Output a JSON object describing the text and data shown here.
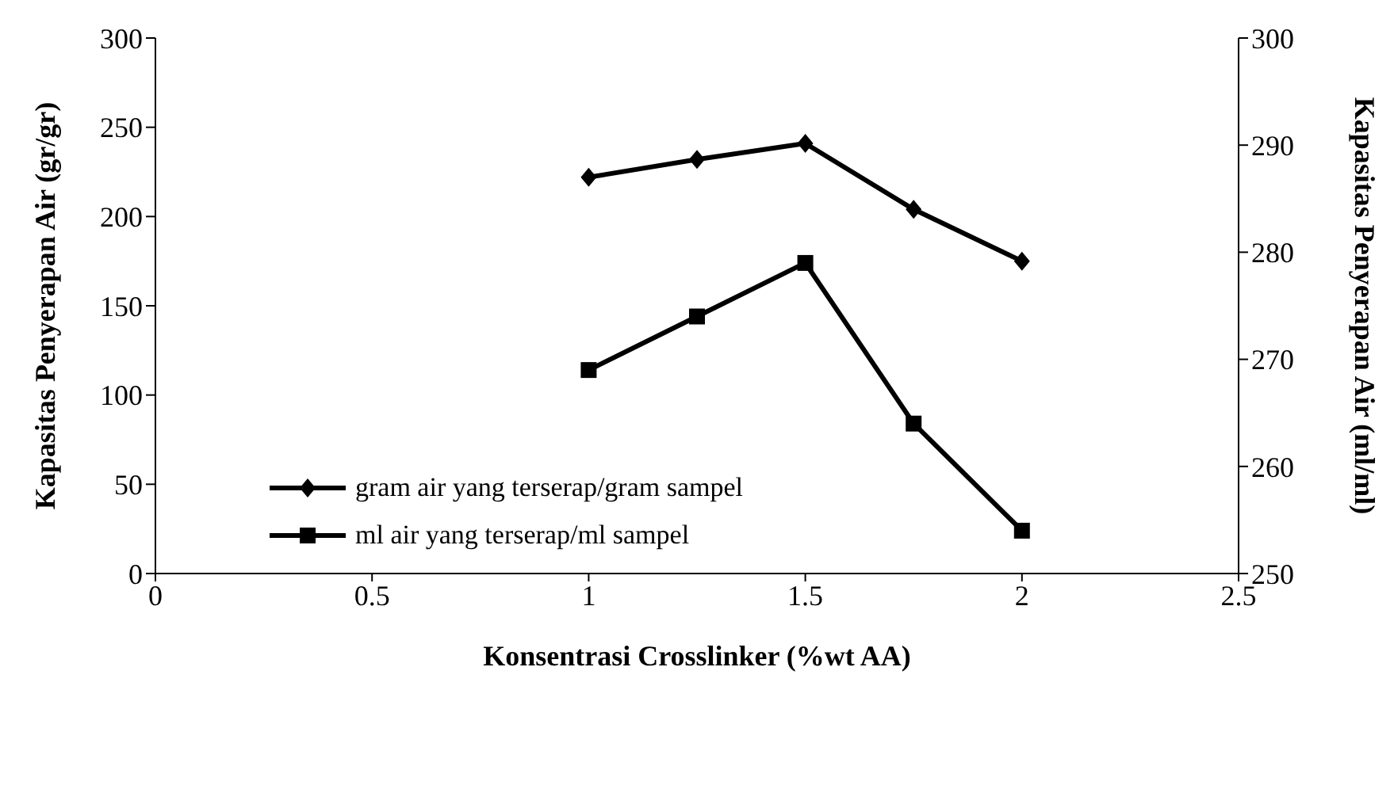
{
  "chart_data": {
    "type": "line",
    "xlabel": "Konsentrasi Crosslinker (%wt AA)",
    "ylabel": "Kapasitas Penyerapan Air  (gr/gr)",
    "y2label": "Kapasitas Penyerapan Air (ml/ml)",
    "x": [
      1,
      1.25,
      1.5,
      1.75,
      2
    ],
    "series": [
      {
        "name": "gram air yang terserap/gram sampel",
        "color": "#000000",
        "marker": "diamond",
        "values": [
          222,
          232,
          241,
          204,
          175
        ]
      },
      {
        "name": "ml air yang terserap/ml sampel",
        "color": "#000000",
        "marker": "square",
        "axis": "y2",
        "values": [
          269,
          274,
          279,
          264,
          254
        ]
      }
    ],
    "xlim": [
      0,
      2.5
    ],
    "xticks": [
      0,
      0.5,
      1,
      1.5,
      2,
      2.5
    ],
    "ylim": [
      0,
      300
    ],
    "yticks": [
      0,
      50,
      100,
      150,
      200,
      250,
      300
    ],
    "y2lim": [
      250,
      300
    ],
    "y2ticks": [
      250,
      260,
      270,
      280,
      290,
      300
    ],
    "grid": false,
    "legend": "bottom left",
    "line_style": "solid"
  }
}
